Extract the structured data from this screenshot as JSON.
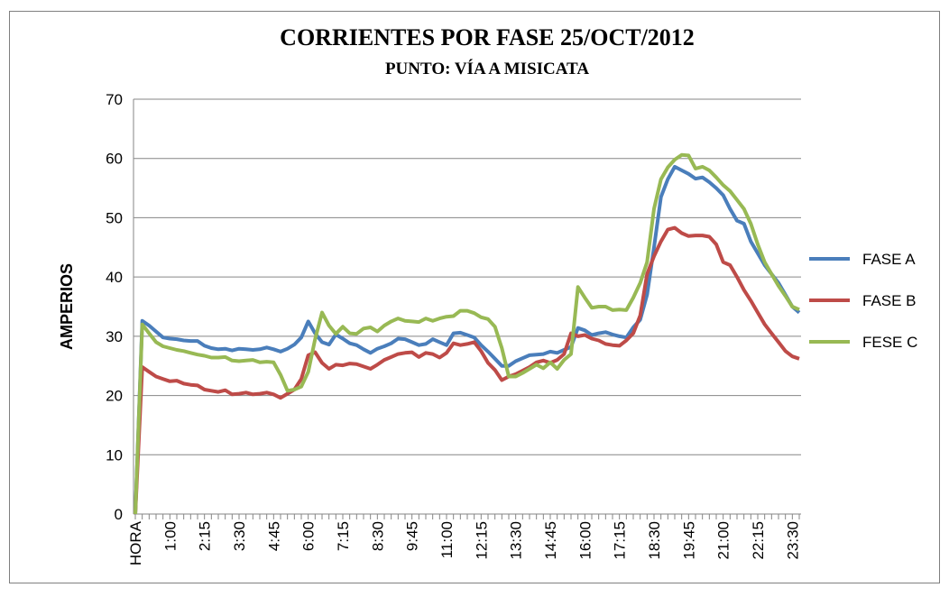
{
  "chart_data": {
    "type": "line",
    "title": "CORRIENTES POR FASE 25/OCT/2012",
    "subtitle": "PUNTO: VÍA A MISICATA",
    "y_label": "AMPERIOS",
    "categories": [
      "HORA",
      null,
      null,
      null,
      null,
      "1:00",
      null,
      null,
      null,
      null,
      "2:15",
      null,
      null,
      null,
      null,
      "3:30",
      null,
      null,
      null,
      null,
      "4:45",
      null,
      null,
      null,
      null,
      "6:00",
      null,
      null,
      null,
      null,
      "7:15",
      null,
      null,
      null,
      null,
      "8:30",
      null,
      null,
      null,
      null,
      "9:45",
      null,
      null,
      null,
      null,
      "11:00",
      null,
      null,
      null,
      null,
      "12:15",
      null,
      null,
      null,
      null,
      "13:30",
      null,
      null,
      null,
      null,
      "14:45",
      null,
      null,
      null,
      null,
      "16:00",
      null,
      null,
      null,
      null,
      "17:15",
      null,
      null,
      null,
      null,
      "18:30",
      null,
      null,
      null,
      null,
      "19:45",
      null,
      null,
      null,
      null,
      "21:00",
      null,
      null,
      null,
      null,
      "22:15",
      null,
      null,
      null,
      null,
      "23:30",
      null
    ],
    "series": [
      {
        "name": "FASE A",
        "color": "#4a7ebb",
        "values": [
          0,
          32.6,
          31.8,
          30.8,
          29.8,
          29.6,
          29.5,
          29.3,
          29.2,
          29.2,
          28.4,
          28.0,
          27.8,
          27.9,
          27.6,
          27.9,
          27.8,
          27.7,
          27.8,
          28.1,
          27.8,
          27.4,
          27.9,
          28.6,
          29.8,
          32.5,
          30.5,
          29.0,
          28.6,
          30.3,
          29.6,
          28.8,
          28.5,
          27.8,
          27.2,
          27.9,
          28.3,
          28.8,
          29.6,
          29.5,
          29.0,
          28.5,
          28.7,
          29.5,
          29.0,
          28.5,
          30.5,
          30.6,
          30.2,
          29.8,
          28.5,
          27.4,
          26.2,
          25.0,
          25.0,
          25.8,
          26.3,
          26.8,
          26.9,
          27.0,
          27.4,
          27.2,
          27.7,
          28.2,
          31.4,
          31.0,
          30.2,
          30.5,
          30.7,
          30.3,
          30.0,
          29.8,
          31.5,
          32.8,
          37.0,
          45.0,
          53.5,
          56.5,
          58.6,
          58.0,
          57.4,
          56.6,
          56.8,
          56.0,
          55.0,
          53.8,
          51.5,
          49.5,
          49.0,
          46.0,
          44.0,
          42.0,
          40.5,
          39.0,
          37.0,
          35.0,
          34.0
        ]
      },
      {
        "name": "FASE B",
        "color": "#be4b48",
        "values": [
          0,
          24.8,
          24.0,
          23.2,
          22.8,
          22.4,
          22.5,
          22.0,
          21.8,
          21.7,
          21.0,
          20.8,
          20.6,
          20.9,
          20.2,
          20.3,
          20.5,
          20.2,
          20.3,
          20.5,
          20.2,
          19.6,
          20.3,
          21.0,
          22.8,
          26.8,
          27.3,
          25.5,
          24.5,
          25.2,
          25.1,
          25.4,
          25.3,
          24.9,
          24.5,
          25.2,
          26.0,
          26.5,
          27.0,
          27.2,
          27.3,
          26.5,
          27.2,
          27.0,
          26.4,
          27.2,
          28.8,
          28.5,
          28.7,
          29.0,
          27.5,
          25.5,
          24.3,
          22.6,
          23.2,
          23.6,
          24.2,
          24.8,
          25.6,
          25.9,
          25.5,
          26.0,
          27.0,
          30.5,
          30.0,
          30.2,
          29.6,
          29.3,
          28.7,
          28.5,
          28.4,
          29.3,
          30.5,
          33.5,
          40.5,
          43.5,
          46.0,
          48.0,
          48.3,
          47.4,
          46.9,
          47.0,
          47.0,
          46.8,
          45.5,
          42.5,
          42.0,
          40.0,
          37.8,
          36.0,
          34.0,
          32.0,
          30.5,
          29.0,
          27.5,
          26.6,
          26.2
        ]
      },
      {
        "name": "FESE C",
        "color": "#98b954",
        "values": [
          0,
          32.0,
          30.5,
          29.0,
          28.3,
          28.0,
          27.7,
          27.5,
          27.2,
          26.9,
          26.7,
          26.4,
          26.4,
          26.5,
          25.9,
          25.8,
          25.9,
          26.0,
          25.6,
          25.7,
          25.6,
          23.5,
          20.8,
          21.0,
          21.5,
          24.0,
          29.5,
          34.0,
          31.8,
          30.4,
          31.6,
          30.5,
          30.4,
          31.3,
          31.5,
          30.8,
          31.8,
          32.5,
          33.0,
          32.6,
          32.5,
          32.4,
          33.0,
          32.6,
          33.0,
          33.3,
          33.4,
          34.3,
          34.3,
          33.9,
          33.2,
          32.9,
          31.6,
          28.0,
          23.2,
          23.2,
          23.8,
          24.5,
          25.2,
          24.6,
          25.6,
          24.5,
          26.0,
          27.0,
          38.3,
          36.5,
          34.8,
          35.0,
          35.0,
          34.4,
          34.5,
          34.4,
          36.5,
          39.0,
          42.5,
          51.5,
          56.5,
          58.5,
          59.8,
          60.6,
          60.5,
          58.3,
          58.6,
          58.0,
          56.8,
          55.5,
          54.5,
          53.0,
          51.5,
          49.0,
          45.5,
          42.5,
          40.5,
          38.5,
          36.8,
          35.0,
          34.5
        ]
      }
    ],
    "ylim": [
      0,
      70
    ],
    "yticks": [
      0,
      10,
      20,
      30,
      40,
      50,
      60,
      70
    ],
    "grid": true,
    "legend": "right"
  }
}
